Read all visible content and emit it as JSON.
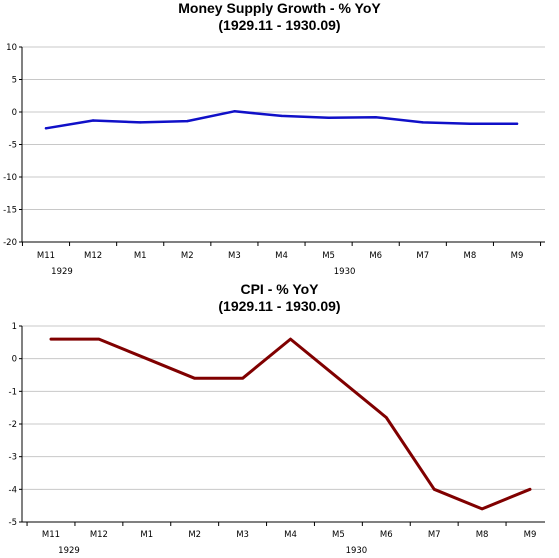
{
  "chart_data": [
    {
      "type": "line",
      "title": "Money Supply Growth - % YoY",
      "subtitle": "(1929.11 - 1930.09)",
      "categories": [
        "M11",
        "M12",
        "M1",
        "M2",
        "M3",
        "M4",
        "M5",
        "M6",
        "M7",
        "M8",
        "M9"
      ],
      "year_labels": [
        {
          "label": "1929",
          "at": "M11"
        },
        {
          "label": "1930",
          "at": "M5"
        }
      ],
      "series": [
        {
          "values": [
            -2.5,
            -1.3,
            -1.6,
            -1.4,
            0.1,
            -0.6,
            -0.9,
            -0.8,
            -1.6,
            -1.8,
            -1.8
          ],
          "color": "#1010c8"
        }
      ],
      "yticks": [
        10,
        5,
        0,
        -5,
        -10,
        -15,
        -20
      ],
      "ylim": [
        -20,
        10
      ],
      "grid": true,
      "legend": "none"
    },
    {
      "type": "line",
      "title": "CPI - % YoY",
      "subtitle": "(1929.11 - 1930.09)",
      "categories": [
        "M11",
        "M12",
        "M1",
        "M2",
        "M3",
        "M4",
        "M5",
        "M6",
        "M7",
        "M8",
        "M9"
      ],
      "year_labels": [
        {
          "label": "1929",
          "at": "M11"
        },
        {
          "label": "1930",
          "at": "M5"
        }
      ],
      "series": [
        {
          "values": [
            0.6,
            0.6,
            0.0,
            -0.6,
            -0.6,
            0.6,
            -0.6,
            -1.8,
            -4.0,
            -4.6,
            -4.0
          ],
          "color": "#800000"
        }
      ],
      "yticks": [
        1,
        0,
        -1,
        -2,
        -3,
        -4,
        -5
      ],
      "ylim": [
        -5,
        1
      ],
      "grid": true,
      "legend": "none"
    }
  ]
}
